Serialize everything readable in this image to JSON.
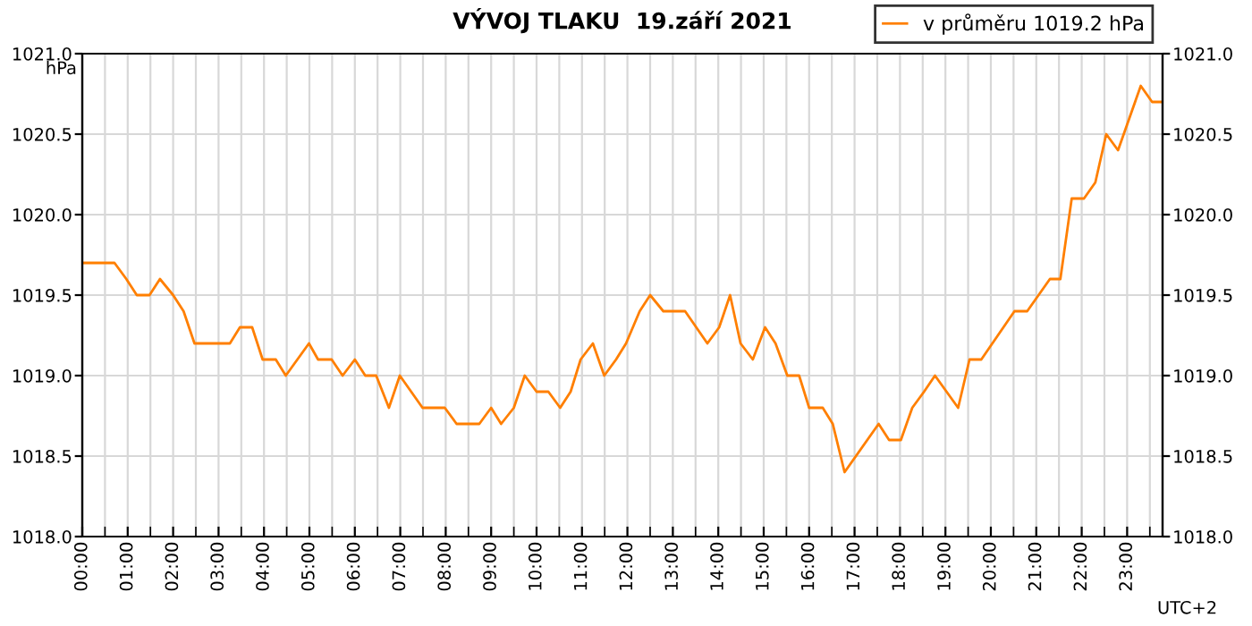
{
  "chart_data": {
    "type": "line",
    "title": "VÝVOJ TLAKU  19.září 2021",
    "ylabel": "hPa",
    "xlabel": "UTC+2",
    "legend": "top right",
    "grid": true,
    "marker": "none",
    "line_style": "solid",
    "series": [
      {
        "name": "v průměru 1019.2 hPa",
        "color": "#ff7f00",
        "x": [
          0,
          0.71,
          0.97,
          1.2,
          1.48,
          1.71,
          2.0,
          2.23,
          2.47,
          3.25,
          3.47,
          3.74,
          3.97,
          4.26,
          4.48,
          4.99,
          5.19,
          5.49,
          5.73,
          6.0,
          6.23,
          6.47,
          6.75,
          6.99,
          7.49,
          7.98,
          8.24,
          8.74,
          9.0,
          9.22,
          9.5,
          9.74,
          10.0,
          10.26,
          10.52,
          10.75,
          10.97,
          11.24,
          11.49,
          11.75,
          11.97,
          12.27,
          12.5,
          12.79,
          13.27,
          13.76,
          14.02,
          14.26,
          14.49,
          14.76,
          15.03,
          15.26,
          15.52,
          15.78,
          16.0,
          16.3,
          16.52,
          16.78,
          17.53,
          17.76,
          18.02,
          18.27,
          18.53,
          18.77,
          19.28,
          19.53,
          19.79,
          20.52,
          20.8,
          21.3,
          21.53,
          21.78,
          22.05,
          22.3,
          22.54,
          22.8,
          23.3,
          23.55,
          23.78
        ],
        "values": [
          1019.7,
          1019.7,
          1019.6,
          1019.5,
          1019.5,
          1019.6,
          1019.5,
          1019.4,
          1019.2,
          1019.2,
          1019.3,
          1019.3,
          1019.1,
          1019.1,
          1019.0,
          1019.2,
          1019.1,
          1019.1,
          1019.0,
          1019.1,
          1019.0,
          1019.0,
          1018.8,
          1019.0,
          1018.8,
          1018.8,
          1018.7,
          1018.7,
          1018.8,
          1018.7,
          1018.8,
          1019.0,
          1018.9,
          1018.9,
          1018.8,
          1018.9,
          1019.1,
          1019.2,
          1019.0,
          1019.1,
          1019.2,
          1019.4,
          1019.5,
          1019.4,
          1019.4,
          1019.2,
          1019.3,
          1019.5,
          1019.2,
          1019.1,
          1019.3,
          1019.2,
          1019.0,
          1019.0,
          1018.8,
          1018.8,
          1018.7,
          1018.4,
          1018.7,
          1018.6,
          1018.6,
          1018.8,
          1018.9,
          1019.0,
          1018.8,
          1019.1,
          1019.1,
          1019.4,
          1019.4,
          1019.6,
          1019.6,
          1020.1,
          1020.1,
          1020.2,
          1020.5,
          1020.4,
          1020.8,
          1020.7,
          1020.7
        ]
      }
    ],
    "xlim": [
      0,
      23.78
    ],
    "xticks": [
      {
        "value": 0,
        "label": "00:00"
      },
      {
        "value": 1,
        "label": "01:00"
      },
      {
        "value": 2,
        "label": "02:00"
      },
      {
        "value": 3,
        "label": "03:00"
      },
      {
        "value": 4,
        "label": "04:00"
      },
      {
        "value": 5,
        "label": "05:00"
      },
      {
        "value": 6,
        "label": "06:00"
      },
      {
        "value": 7,
        "label": "07:00"
      },
      {
        "value": 8,
        "label": "08:00"
      },
      {
        "value": 9,
        "label": "09:00"
      },
      {
        "value": 10,
        "label": "10:00"
      },
      {
        "value": 11,
        "label": "11:00"
      },
      {
        "value": 12,
        "label": "12:00"
      },
      {
        "value": 13,
        "label": "13:00"
      },
      {
        "value": 14,
        "label": "14:00"
      },
      {
        "value": 15,
        "label": "15:00"
      },
      {
        "value": 16,
        "label": "16:00"
      },
      {
        "value": 17,
        "label": "17:00"
      },
      {
        "value": 18,
        "label": "18:00"
      },
      {
        "value": 19,
        "label": "19:00"
      },
      {
        "value": 20,
        "label": "20:00"
      },
      {
        "value": 21,
        "label": "21:00"
      },
      {
        "value": 22,
        "label": "22:00"
      },
      {
        "value": 23,
        "label": "23:00"
      },
      {
        "value": 0.5,
        "label": null
      },
      {
        "value": 1.5,
        "label": null
      },
      {
        "value": 2.5,
        "label": null
      },
      {
        "value": 3.5,
        "label": null
      },
      {
        "value": 4.5,
        "label": null
      },
      {
        "value": 5.5,
        "label": null
      },
      {
        "value": 6.5,
        "label": null
      },
      {
        "value": 7.5,
        "label": null
      },
      {
        "value": 8.5,
        "label": null
      },
      {
        "value": 9.5,
        "label": null
      },
      {
        "value": 10.5,
        "label": null
      },
      {
        "value": 11.5,
        "label": null
      },
      {
        "value": 12.5,
        "label": null
      },
      {
        "value": 13.5,
        "label": null
      },
      {
        "value": 14.5,
        "label": null
      },
      {
        "value": 15.5,
        "label": null
      },
      {
        "value": 16.5,
        "label": null
      },
      {
        "value": 17.5,
        "label": null
      },
      {
        "value": 18.5,
        "label": null
      },
      {
        "value": 19.5,
        "label": null
      },
      {
        "value": 20.5,
        "label": null
      },
      {
        "value": 21.5,
        "label": null
      },
      {
        "value": 22.5,
        "label": null
      },
      {
        "value": 23.5,
        "label": null
      }
    ],
    "ylim": [
      1018.0,
      1021.0
    ],
    "yticks": [
      {
        "value": 1018.0,
        "label": "1018.0"
      },
      {
        "value": 1018.5,
        "label": "1018.5"
      },
      {
        "value": 1019.0,
        "label": "1019.0"
      },
      {
        "value": 1019.5,
        "label": "1019.5"
      },
      {
        "value": 1020.0,
        "label": "1020.0"
      },
      {
        "value": 1020.5,
        "label": "1020.5"
      },
      {
        "value": 1021.0,
        "label": "1021.0"
      }
    ],
    "y2lim": [
      1018.0,
      1021.0
    ],
    "y2ticks": [
      {
        "value": 1018.0,
        "label": "1018.0"
      },
      {
        "value": 1018.5,
        "label": "1018.5"
      },
      {
        "value": 1019.0,
        "label": "1019.0"
      },
      {
        "value": 1019.5,
        "label": "1019.5"
      },
      {
        "value": 1020.0,
        "label": "1020.0"
      },
      {
        "value": 1020.5,
        "label": "1020.5"
      },
      {
        "value": 1021.0,
        "label": "1021.0"
      }
    ]
  }
}
